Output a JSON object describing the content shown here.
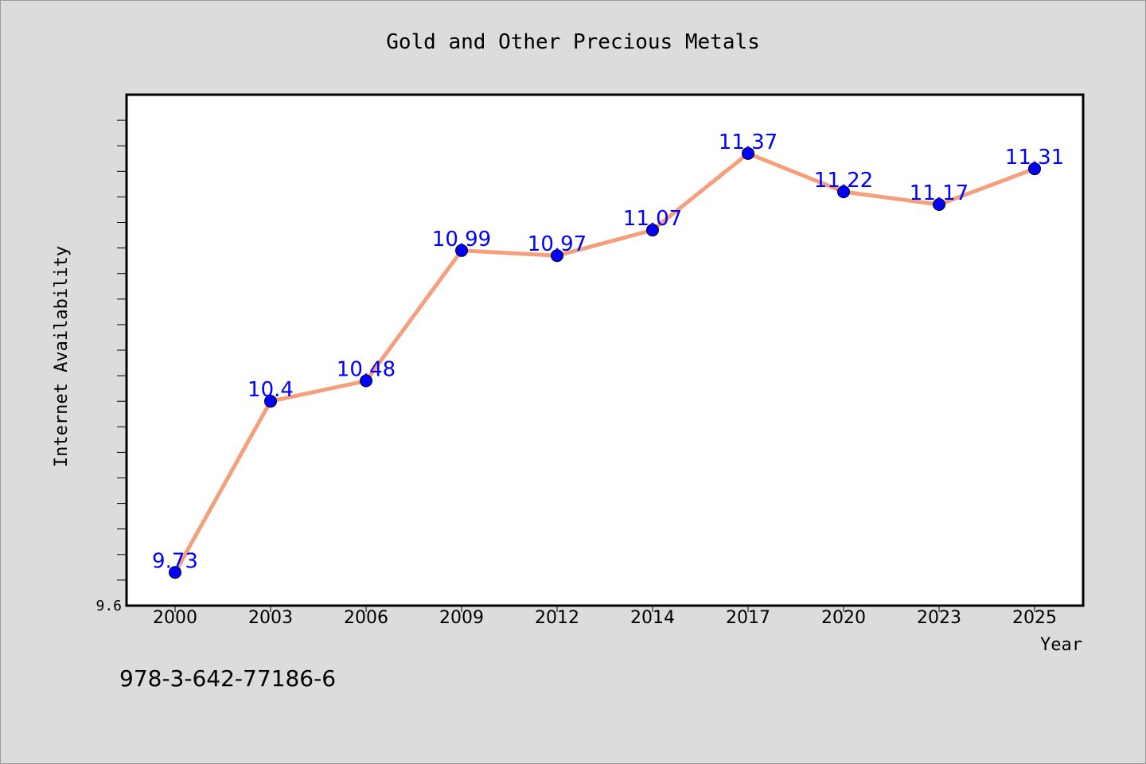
{
  "chart_data": {
    "type": "line",
    "title": "Gold and Other Precious Metals",
    "xlabel": "Year",
    "ylabel": "Internet Availability",
    "categories": [
      "2000",
      "2003",
      "2006",
      "2009",
      "2012",
      "2014",
      "2017",
      "2020",
      "2023",
      "2025"
    ],
    "series": [
      {
        "values": [
          9.73,
          10.4,
          10.48,
          10.99,
          10.97,
          11.07,
          11.37,
          11.22,
          11.17,
          11.31
        ],
        "data_labels": [
          "9.73",
          "10.4",
          "10.48",
          "10.99",
          "10.97",
          "11.07",
          "11.37",
          "11.22",
          "11.17",
          "11.31"
        ]
      }
    ],
    "ylim": [
      9.6,
      11.6
    ],
    "y_tick_label": "9.6",
    "y_minor_tick_step": 0.1,
    "grid": false,
    "legend": "none",
    "colors": {
      "line": "#f4a07c",
      "marker": "#0000ff",
      "data_label": "#0000ff",
      "plot_bg": "#ffffff",
      "page_bg": "#dcdcdc"
    }
  },
  "footer": {
    "isbn": "978-3-642-77186-6"
  }
}
